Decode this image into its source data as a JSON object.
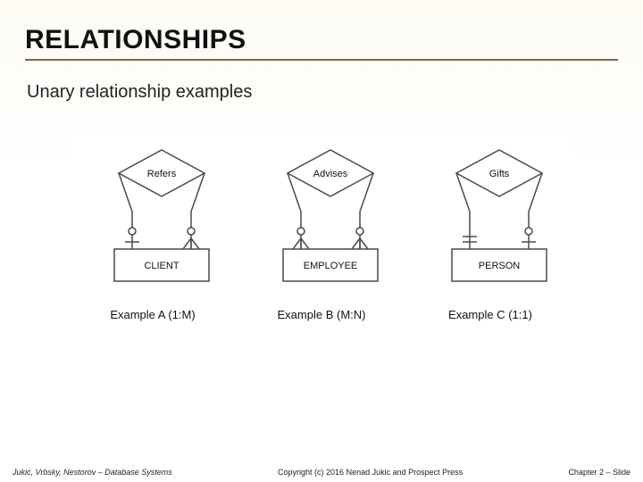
{
  "title": "RELATIONSHIPS",
  "subtitle": "Unary relationship examples",
  "stroke_color": "#4a4a4a",
  "stroke_width": 1.5,
  "bg_color": "#ffffff",
  "diagram_font_size": 11,
  "examples": [
    {
      "relationship_label": "Refers",
      "entity_label": "CLIENT",
      "caption": "Example A (1:M)",
      "left_notation": "zero-or-one",
      "right_notation": "zero-or-many"
    },
    {
      "relationship_label": "Advises",
      "entity_label": "EMPLOYEE",
      "caption": "Example B (M:N)",
      "left_notation": "zero-or-many",
      "right_notation": "zero-or-many"
    },
    {
      "relationship_label": "Gifts",
      "entity_label": "PERSON",
      "caption": "Example C (1:1)",
      "left_notation": "one-and-only-one",
      "right_notation": "zero-or-one"
    }
  ],
  "footer": {
    "left": "Jukić, Vrbsky, Nestorov – Database Systems",
    "center": "Copyright (c) 2016 Nenad Jukic and Prospect Press",
    "right": "Chapter 2 – Slide"
  }
}
